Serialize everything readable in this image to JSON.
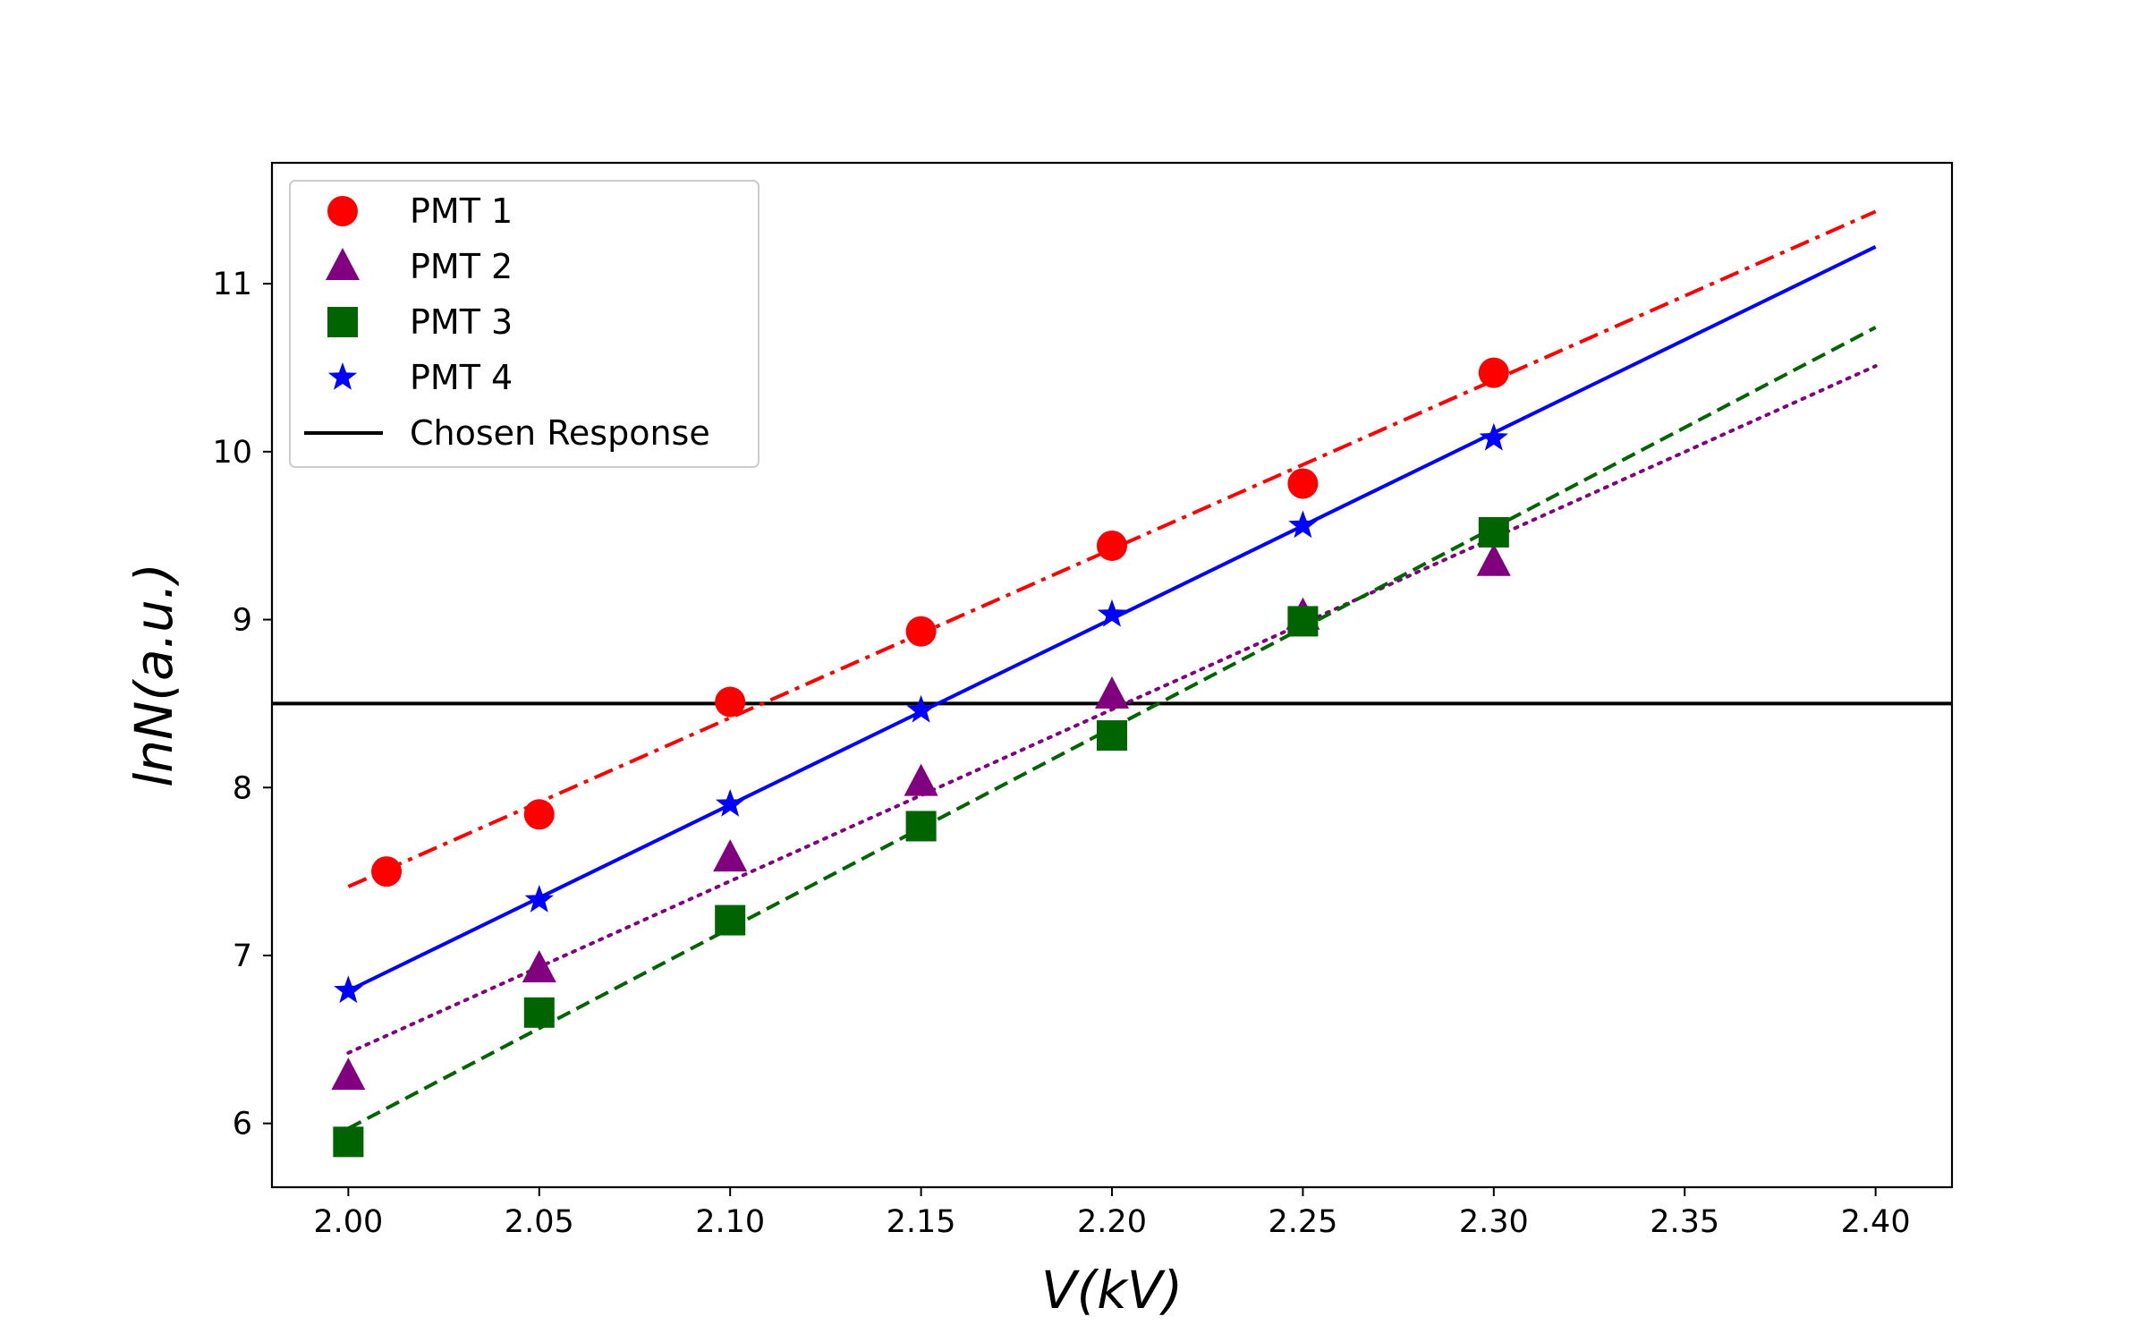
{
  "chart_data": {
    "type": "scatter",
    "title": "",
    "xlabel": "V(kV)",
    "ylabel": "lnN(a.u.)",
    "xlim": [
      1.98,
      2.42
    ],
    "ylim": [
      5.62,
      11.72
    ],
    "xticks": [
      2.0,
      2.05,
      2.1,
      2.15,
      2.2,
      2.25,
      2.3,
      2.35,
      2.4
    ],
    "xtick_labels": [
      "2.00",
      "2.05",
      "2.10",
      "2.15",
      "2.20",
      "2.25",
      "2.30",
      "2.35",
      "2.40"
    ],
    "yticks": [
      6,
      7,
      8,
      9,
      10,
      11
    ],
    "ytick_labels": [
      "6",
      "7",
      "8",
      "9",
      "10",
      "11"
    ],
    "grid": false,
    "legend_position": "top-left",
    "series": [
      {
        "name": "PMT 1",
        "marker": "circle",
        "color": "#ff0000",
        "line_style": "dashdot",
        "points": [
          [
            2.01,
            7.5
          ],
          [
            2.05,
            7.84
          ],
          [
            2.1,
            8.51
          ],
          [
            2.15,
            8.93
          ],
          [
            2.2,
            9.44
          ],
          [
            2.25,
            9.81
          ],
          [
            2.3,
            10.47
          ]
        ],
        "fit": [
          [
            2.0,
            7.41
          ],
          [
            2.4,
            11.43
          ]
        ]
      },
      {
        "name": "PMT 2",
        "marker": "triangle",
        "color": "#800080",
        "line_style": "dotted",
        "points": [
          [
            2.0,
            6.28
          ],
          [
            2.05,
            6.92
          ],
          [
            2.1,
            7.58
          ],
          [
            2.15,
            8.03
          ],
          [
            2.2,
            8.55
          ],
          [
            2.25,
            9.02
          ],
          [
            2.3,
            9.34
          ]
        ],
        "fit": [
          [
            2.0,
            6.42
          ],
          [
            2.4,
            10.51
          ]
        ]
      },
      {
        "name": "PMT 3",
        "marker": "square",
        "color": "#006400",
        "line_style": "dashed",
        "points": [
          [
            2.0,
            5.89
          ],
          [
            2.05,
            6.66
          ],
          [
            2.1,
            7.21
          ],
          [
            2.15,
            7.77
          ],
          [
            2.2,
            8.31
          ],
          [
            2.25,
            8.99
          ],
          [
            2.3,
            9.52
          ]
        ],
        "fit": [
          [
            2.0,
            5.97
          ],
          [
            2.4,
            10.74
          ]
        ]
      },
      {
        "name": "PMT 4",
        "marker": "star",
        "color": "#0000ff",
        "line_style": "solid",
        "points": [
          [
            2.0,
            6.79
          ],
          [
            2.05,
            7.33
          ],
          [
            2.1,
            7.9
          ],
          [
            2.15,
            8.46
          ],
          [
            2.2,
            9.03
          ],
          [
            2.25,
            9.56
          ],
          [
            2.3,
            10.08
          ]
        ],
        "fit": [
          [
            2.0,
            6.79
          ],
          [
            2.4,
            11.22
          ]
        ]
      }
    ],
    "reference_line": {
      "name": "Chosen Response",
      "color": "#000000",
      "y": 8.5
    }
  }
}
